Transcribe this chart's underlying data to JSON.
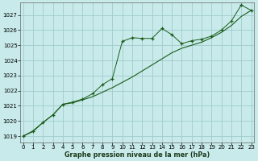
{
  "title": "Graphe pression niveau de la mer (hPa)",
  "bg_color": "#c8eaea",
  "grid_color": "#a0cccc",
  "line_color": "#1a5c1a",
  "xlim": [
    -0.3,
    23.3
  ],
  "ylim": [
    1018.6,
    1027.8
  ],
  "yticks": [
    1019,
    1020,
    1021,
    1022,
    1023,
    1024,
    1025,
    1026,
    1027
  ],
  "xticks": [
    0,
    1,
    2,
    3,
    4,
    5,
    6,
    7,
    8,
    9,
    10,
    11,
    12,
    13,
    14,
    15,
    16,
    17,
    18,
    19,
    20,
    21,
    22,
    23
  ],
  "series1_x": [
    0,
    1,
    2,
    3,
    4,
    5,
    6,
    7,
    8,
    9,
    10,
    11,
    12,
    13,
    14,
    15,
    16,
    17,
    18,
    19,
    20,
    21,
    22,
    23
  ],
  "series1_y": [
    1019.0,
    1019.3,
    1019.9,
    1020.4,
    1021.1,
    1021.25,
    1021.45,
    1021.8,
    1022.4,
    1022.8,
    1025.25,
    1025.5,
    1025.45,
    1025.45,
    1026.1,
    1025.7,
    1025.1,
    1025.3,
    1025.4,
    1025.6,
    1026.0,
    1026.6,
    1027.65,
    1027.3
  ],
  "series2_x": [
    0,
    1,
    2,
    3,
    4,
    5,
    6,
    7,
    8,
    9,
    10,
    11,
    12,
    13,
    14,
    15,
    16,
    17,
    18,
    19,
    20,
    21,
    22,
    23
  ],
  "series2_y": [
    1019.0,
    1019.35,
    1019.9,
    1020.4,
    1021.1,
    1021.2,
    1021.4,
    1021.6,
    1021.9,
    1022.2,
    1022.55,
    1022.9,
    1023.3,
    1023.7,
    1024.1,
    1024.5,
    1024.8,
    1025.0,
    1025.2,
    1025.5,
    1025.85,
    1026.3,
    1026.9,
    1027.3
  ]
}
